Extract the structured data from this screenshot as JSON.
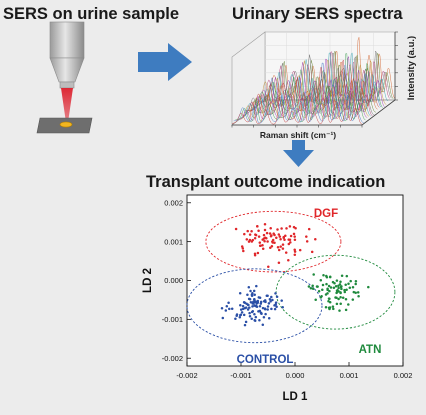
{
  "titles": {
    "left": "SERS on urine sample",
    "right": "Urinary SERS spectra",
    "bottom": "Transplant outcome indication"
  },
  "spectra": {
    "x_axis_label": "Raman shift (cm⁻¹)",
    "y_axis_label": "Intensity (a.u.)"
  },
  "colors": {
    "background": "#ececec",
    "title_text": "#1a1a1a",
    "arrow_blue": "#3e7cc0",
    "laser_red": "#dd1f2c",
    "dgf": "#e0262a",
    "atn": "#1f8a3d",
    "control": "#2a4fa6"
  },
  "chart_data": {
    "type": "scatter",
    "xlabel": "LD 1",
    "ylabel": "LD 2",
    "xlim": [
      -0.002,
      0.002
    ],
    "ylim": [
      -0.0022,
      0.0022
    ],
    "x_ticks": [
      "-0.002",
      "-0.001",
      "0.000",
      "0.001",
      "0.002"
    ],
    "y_ticks": [
      "-0.002",
      "-0.001",
      "0.000",
      "0.001",
      "0.002"
    ],
    "groups": [
      {
        "name": "DGF",
        "color": "#e0262a",
        "n": 90,
        "center": [
          -0.0004,
          0.001
        ],
        "spread": [
          0.00055,
          0.00045
        ],
        "ellipse_radii": [
          0.00125,
          0.00078
        ]
      },
      {
        "name": "ATN",
        "color": "#1f8a3d",
        "n": 85,
        "center": [
          0.00075,
          -0.0003
        ],
        "spread": [
          0.00045,
          0.0004
        ],
        "ellipse_radii": [
          0.0011,
          0.00095
        ]
      },
      {
        "name": "CONTROL",
        "color": "#2a4fa6",
        "n": 110,
        "center": [
          -0.00075,
          -0.00065
        ],
        "spread": [
          0.0005,
          0.00045
        ],
        "ellipse_radii": [
          0.00125,
          0.00095
        ]
      }
    ]
  }
}
